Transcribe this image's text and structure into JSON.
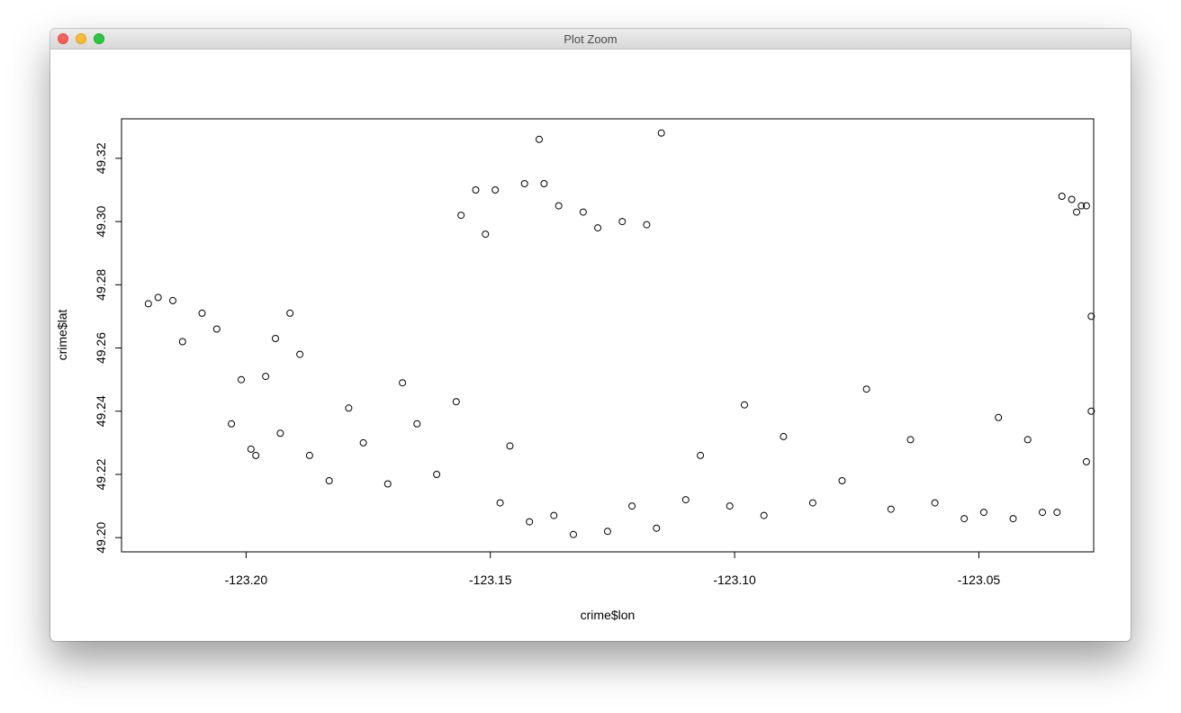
{
  "window": {
    "title": "Plot Zoom",
    "buttons": {
      "close": "close",
      "minimize": "minimize",
      "zoom": "zoom"
    }
  },
  "chart_data": {
    "type": "scatter",
    "marker": "open-circle",
    "marker_color": "#000000",
    "title": "",
    "xlabel": "crime$lon",
    "ylabel": "crime$lat",
    "xlim": [
      -123.2255,
      -123.0265
    ],
    "ylim": [
      49.1955,
      49.3325
    ],
    "xticks": [
      -123.2,
      -123.15,
      -123.1,
      -123.05
    ],
    "xtick_labels": [
      "-123.20",
      "-123.15",
      "-123.10",
      "-123.05"
    ],
    "yticks": [
      49.2,
      49.22,
      49.24,
      49.26,
      49.28,
      49.3,
      49.32
    ],
    "ytick_labels": [
      "49.20",
      "49.22",
      "49.24",
      "49.26",
      "49.28",
      "49.30",
      "49.32"
    ],
    "grid": false,
    "legend": "none",
    "points": [
      [
        -123.22,
        49.274
      ],
      [
        -123.218,
        49.276
      ],
      [
        -123.215,
        49.275
      ],
      [
        -123.213,
        49.262
      ],
      [
        -123.209,
        49.271
      ],
      [
        -123.206,
        49.266
      ],
      [
        -123.203,
        49.236
      ],
      [
        -123.201,
        49.25
      ],
      [
        -123.199,
        49.228
      ],
      [
        -123.198,
        49.226
      ],
      [
        -123.196,
        49.251
      ],
      [
        -123.194,
        49.263
      ],
      [
        -123.193,
        49.233
      ],
      [
        -123.191,
        49.271
      ],
      [
        -123.189,
        49.258
      ],
      [
        -123.187,
        49.226
      ],
      [
        -123.183,
        49.218
      ],
      [
        -123.179,
        49.241
      ],
      [
        -123.176,
        49.23
      ],
      [
        -123.171,
        49.217
      ],
      [
        -123.168,
        49.249
      ],
      [
        -123.165,
        49.236
      ],
      [
        -123.161,
        49.22
      ],
      [
        -123.157,
        49.243
      ],
      [
        -123.156,
        49.302
      ],
      [
        -123.153,
        49.31
      ],
      [
        -123.151,
        49.296
      ],
      [
        -123.149,
        49.31
      ],
      [
        -123.148,
        49.211
      ],
      [
        -123.146,
        49.229
      ],
      [
        -123.143,
        49.312
      ],
      [
        -123.142,
        49.205
      ],
      [
        -123.14,
        49.326
      ],
      [
        -123.139,
        49.312
      ],
      [
        -123.137,
        49.207
      ],
      [
        -123.136,
        49.305
      ],
      [
        -123.133,
        49.201
      ],
      [
        -123.131,
        49.303
      ],
      [
        -123.128,
        49.298
      ],
      [
        -123.126,
        49.202
      ],
      [
        -123.123,
        49.3
      ],
      [
        -123.121,
        49.21
      ],
      [
        -123.118,
        49.299
      ],
      [
        -123.116,
        49.203
      ],
      [
        -123.115,
        49.328
      ],
      [
        -123.11,
        49.212
      ],
      [
        -123.107,
        49.226
      ],
      [
        -123.101,
        49.21
      ],
      [
        -123.098,
        49.242
      ],
      [
        -123.094,
        49.207
      ],
      [
        -123.09,
        49.232
      ],
      [
        -123.084,
        49.211
      ],
      [
        -123.078,
        49.218
      ],
      [
        -123.073,
        49.247
      ],
      [
        -123.068,
        49.209
      ],
      [
        -123.064,
        49.231
      ],
      [
        -123.059,
        49.211
      ],
      [
        -123.053,
        49.206
      ],
      [
        -123.049,
        49.208
      ],
      [
        -123.046,
        49.238
      ],
      [
        -123.043,
        49.206
      ],
      [
        -123.04,
        49.231
      ],
      [
        -123.037,
        49.208
      ],
      [
        -123.034,
        49.208
      ],
      [
        -123.033,
        49.308
      ],
      [
        -123.031,
        49.307
      ],
      [
        -123.03,
        49.303
      ],
      [
        -123.029,
        49.305
      ],
      [
        -123.028,
        49.305
      ],
      [
        -123.027,
        49.27
      ],
      [
        -123.027,
        49.24
      ],
      [
        -123.028,
        49.224
      ]
    ]
  }
}
